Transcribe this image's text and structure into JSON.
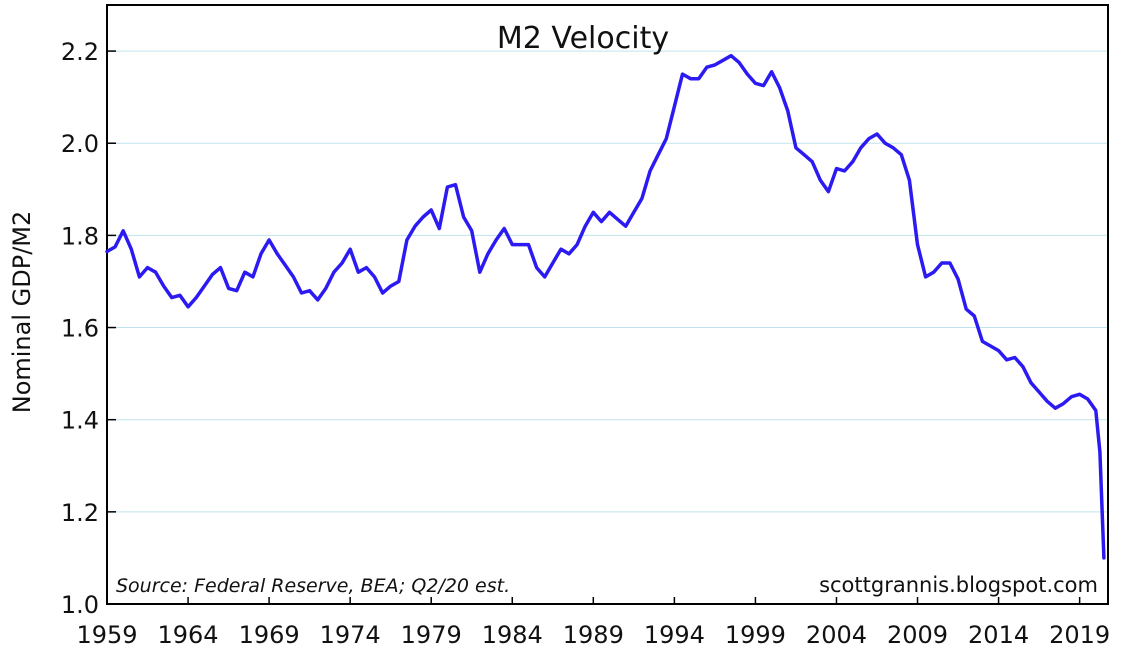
{
  "chart_data": {
    "type": "line",
    "title": "M2 Velocity",
    "xlabel": "",
    "ylabel": "Nominal GDP/M2",
    "ylim": [
      1.0,
      2.3
    ],
    "xlim": [
      1959.0,
      2020.75
    ],
    "grid": true,
    "yticks": [
      "1.0",
      "1.2",
      "1.4",
      "1.6",
      "1.8",
      "2.0",
      "2.2"
    ],
    "ytick_values": [
      1.0,
      1.2,
      1.4,
      1.6,
      1.8,
      2.0,
      2.2
    ],
    "xticks": [
      "1959",
      "1964",
      "1969",
      "1974",
      "1979",
      "1984",
      "1989",
      "1994",
      "1999",
      "2004",
      "2009",
      "2014",
      "2019"
    ],
    "xtick_values": [
      1959,
      1964,
      1969,
      1974,
      1979,
      1984,
      1989,
      1994,
      1999,
      2004,
      2009,
      2014,
      2019
    ],
    "source_note": "Source:  Federal Reserve, BEA; Q2/20 est.",
    "credit": "scottgrannis.blogspot.com",
    "line_color": "#2b1bf2",
    "series": [
      {
        "name": "M2 Velocity",
        "x": [
          1959.0,
          1959.5,
          1960.0,
          1960.5,
          1961.0,
          1961.5,
          1962.0,
          1962.5,
          1963.0,
          1963.5,
          1964.0,
          1964.5,
          1965.0,
          1965.5,
          1966.0,
          1966.5,
          1967.0,
          1967.5,
          1968.0,
          1968.5,
          1969.0,
          1969.5,
          1970.0,
          1970.5,
          1971.0,
          1971.5,
          1972.0,
          1972.5,
          1973.0,
          1973.5,
          1974.0,
          1974.5,
          1975.0,
          1975.5,
          1976.0,
          1976.5,
          1977.0,
          1977.5,
          1978.0,
          1978.5,
          1979.0,
          1979.5,
          1980.0,
          1980.5,
          1981.0,
          1981.5,
          1982.0,
          1982.5,
          1983.0,
          1983.5,
          1984.0,
          1984.5,
          1985.0,
          1985.5,
          1986.0,
          1986.5,
          1987.0,
          1987.5,
          1988.0,
          1988.5,
          1989.0,
          1989.5,
          1990.0,
          1990.5,
          1991.0,
          1991.5,
          1992.0,
          1992.5,
          1993.0,
          1993.5,
          1994.0,
          1994.5,
          1995.0,
          1995.5,
          1996.0,
          1996.5,
          1997.0,
          1997.5,
          1998.0,
          1998.5,
          1999.0,
          1999.5,
          2000.0,
          2000.5,
          2001.0,
          2001.5,
          2002.0,
          2002.5,
          2003.0,
          2003.5,
          2004.0,
          2004.5,
          2005.0,
          2005.5,
          2006.0,
          2006.5,
          2007.0,
          2007.5,
          2008.0,
          2008.5,
          2009.0,
          2009.5,
          2010.0,
          2010.5,
          2011.0,
          2011.5,
          2012.0,
          2012.5,
          2013.0,
          2013.5,
          2014.0,
          2014.5,
          2015.0,
          2015.5,
          2016.0,
          2016.5,
          2017.0,
          2017.5,
          2018.0,
          2018.5,
          2019.0,
          2019.5,
          2020.0,
          2020.25,
          2020.5
        ],
        "values": [
          1.765,
          1.775,
          1.81,
          1.77,
          1.71,
          1.73,
          1.72,
          1.69,
          1.665,
          1.67,
          1.645,
          1.665,
          1.69,
          1.715,
          1.73,
          1.685,
          1.68,
          1.72,
          1.71,
          1.76,
          1.79,
          1.76,
          1.735,
          1.71,
          1.675,
          1.68,
          1.66,
          1.685,
          1.72,
          1.74,
          1.77,
          1.72,
          1.73,
          1.71,
          1.675,
          1.69,
          1.7,
          1.79,
          1.82,
          1.84,
          1.855,
          1.815,
          1.905,
          1.91,
          1.84,
          1.81,
          1.72,
          1.76,
          1.79,
          1.815,
          1.78,
          1.78,
          1.78,
          1.73,
          1.71,
          1.74,
          1.77,
          1.76,
          1.78,
          1.82,
          1.85,
          1.83,
          1.85,
          1.835,
          1.82,
          1.85,
          1.88,
          1.94,
          1.975,
          2.01,
          2.08,
          2.15,
          2.14,
          2.14,
          2.165,
          2.17,
          2.18,
          2.19,
          2.175,
          2.15,
          2.13,
          2.125,
          2.155,
          2.12,
          2.07,
          1.99,
          1.975,
          1.96,
          1.92,
          1.895,
          1.945,
          1.94,
          1.96,
          1.99,
          2.01,
          2.02,
          2.0,
          1.99,
          1.975,
          1.92,
          1.78,
          1.71,
          1.72,
          1.74,
          1.74,
          1.705,
          1.64,
          1.625,
          1.57,
          1.56,
          1.55,
          1.53,
          1.535,
          1.515,
          1.48,
          1.46,
          1.44,
          1.425,
          1.435,
          1.45,
          1.455,
          1.445,
          1.42,
          1.33,
          1.1
        ]
      }
    ]
  }
}
